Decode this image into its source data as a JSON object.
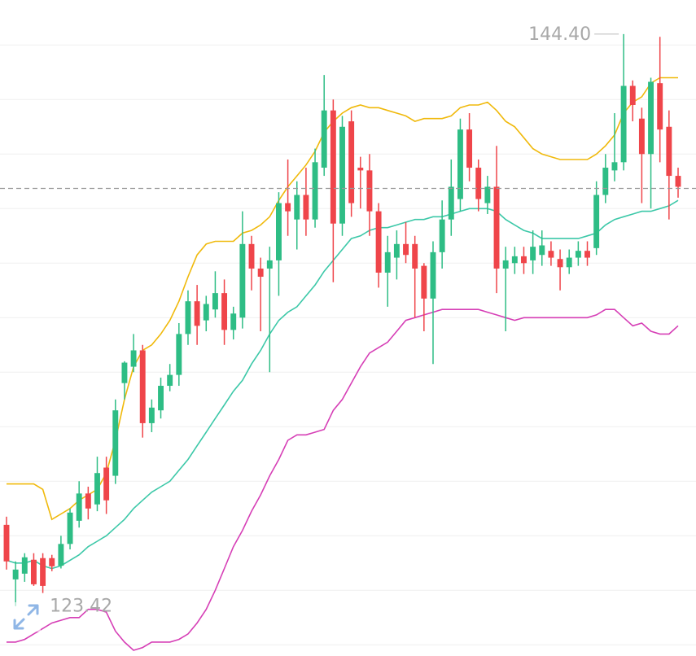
{
  "chart_data": {
    "type": "candlestick",
    "open": [
      126.4,
      124.4,
      124.61,
      125.12,
      125.18,
      125.18,
      124.9,
      125.7,
      126.55,
      127.55,
      127.15,
      128.5,
      128.2,
      131.6,
      132.2,
      132.8,
      130.13,
      130.6,
      131.5,
      131.9,
      133.4,
      134.6,
      133.9,
      134.3,
      134.9,
      133.55,
      134.0,
      136.7,
      135.8,
      135.8,
      136.1,
      138.2,
      137.6,
      138.5,
      137.6,
      139.5,
      141.6,
      137.45,
      141.2,
      139.5,
      139.4,
      137.9,
      135.65,
      136.2,
      136.7,
      136.7,
      135.9,
      134.7,
      136.4,
      137.6,
      138.35,
      140.9,
      139.5,
      138.2,
      138.8,
      135.8,
      136.0,
      136.25,
      136.1,
      136.3,
      136.45,
      136.15,
      135.85,
      136.2,
      136.45,
      136.55,
      138.5,
      139.4,
      139.7,
      142.5,
      141.3,
      140.0,
      142.6,
      141.0,
      139.2
    ],
    "high": [
      126.7,
      125.06,
      125.36,
      125.36,
      125.36,
      125.3,
      126.0,
      127.0,
      128.0,
      127.8,
      128.9,
      128.9,
      131.0,
      132.4,
      133.4,
      133.0,
      131.0,
      131.8,
      132.3,
      133.8,
      135.0,
      135.2,
      134.8,
      135.7,
      135.4,
      134.4,
      137.9,
      137.0,
      136.2,
      136.6,
      138.6,
      139.8,
      139.0,
      139.5,
      140.2,
      142.9,
      142.0,
      141.4,
      141.6,
      139.9,
      140.0,
      138.2,
      137.0,
      137.2,
      137.5,
      137.0,
      136.0,
      136.8,
      138.3,
      139.8,
      141.3,
      141.5,
      139.8,
      139.2,
      140.3,
      136.6,
      136.6,
      136.6,
      137.2,
      137.2,
      136.8,
      136.5,
      136.5,
      136.8,
      136.8,
      139.0,
      140.0,
      141.5,
      144.4,
      142.7,
      141.7,
      142.8,
      144.3,
      141.6,
      139.5
    ],
    "low": [
      124.76,
      123.42,
      124.31,
      124.16,
      123.9,
      124.7,
      124.8,
      125.5,
      126.3,
      126.6,
      126.9,
      126.8,
      127.9,
      131.0,
      132.0,
      129.6,
      129.8,
      130.3,
      131.3,
      131.5,
      133.0,
      133.0,
      133.5,
      134.0,
      133.0,
      133.2,
      133.6,
      135.0,
      133.5,
      132.0,
      134.8,
      137.0,
      136.5,
      137.0,
      137.3,
      139.2,
      135.3,
      137.0,
      137.7,
      138.0,
      137.0,
      135.1,
      134.4,
      135.4,
      136.0,
      134.0,
      133.5,
      132.3,
      135.8,
      137.0,
      137.9,
      139.0,
      137.9,
      137.8,
      134.9,
      133.5,
      135.6,
      135.6,
      135.6,
      135.9,
      135.9,
      135.0,
      135.6,
      135.9,
      135.9,
      136.3,
      138.2,
      139.0,
      139.4,
      141.2,
      138.2,
      138.0,
      139.7,
      137.6,
      138.4
    ],
    "close": [
      125.06,
      124.76,
      125.21,
      124.22,
      124.16,
      124.88,
      125.7,
      126.85,
      127.55,
      127.0,
      128.3,
      127.3,
      130.6,
      132.35,
      132.8,
      130.13,
      130.7,
      131.5,
      131.9,
      133.4,
      134.6,
      133.7,
      134.5,
      134.9,
      133.55,
      134.15,
      136.7,
      135.8,
      135.5,
      136.1,
      138.2,
      137.9,
      138.5,
      137.6,
      139.7,
      141.6,
      137.45,
      141.0,
      138.2,
      139.4,
      137.9,
      135.65,
      136.4,
      136.7,
      136.3,
      135.8,
      134.7,
      136.4,
      137.6,
      138.8,
      140.9,
      139.5,
      138.35,
      138.8,
      135.8,
      136.1,
      136.25,
      136.0,
      136.6,
      136.65,
      136.2,
      135.85,
      136.2,
      136.45,
      136.2,
      138.5,
      139.5,
      139.7,
      142.5,
      141.8,
      140.0,
      142.65,
      140.9,
      139.2,
      138.8
    ],
    "up_color": "#2ebd85",
    "down_color": "#ef454a",
    "overlays": [
      {
        "color": "#f0b90b",
        "values": [
          127.9,
          127.9,
          127.9,
          127.9,
          127.7,
          126.6,
          126.8,
          127.0,
          127.3,
          127.5,
          127.7,
          128.3,
          129.5,
          131.0,
          132.2,
          132.8,
          133.0,
          133.4,
          133.9,
          134.6,
          135.5,
          136.3,
          136.7,
          136.8,
          136.8,
          136.8,
          137.1,
          137.2,
          137.4,
          137.7,
          138.3,
          138.8,
          139.2,
          139.6,
          140.1,
          140.8,
          141.2,
          141.5,
          141.7,
          141.8,
          141.7,
          141.7,
          141.6,
          141.5,
          141.4,
          141.2,
          141.3,
          141.3,
          141.3,
          141.4,
          141.7,
          141.8,
          141.8,
          141.9,
          141.6,
          141.2,
          141.0,
          140.6,
          140.2,
          140.0,
          139.9,
          139.8,
          139.8,
          139.8,
          139.8,
          140.0,
          140.3,
          140.7,
          141.5,
          141.9,
          142.1,
          142.6,
          142.8,
          142.8,
          142.8
        ]
      },
      {
        "color": "#3cc8a8",
        "values": [
          125.1,
          125.0,
          125.0,
          125.1,
          124.9,
          124.8,
          124.9,
          125.1,
          125.3,
          125.6,
          125.8,
          126.0,
          126.3,
          126.6,
          127.0,
          127.3,
          127.6,
          127.8,
          128.0,
          128.4,
          128.8,
          129.3,
          129.8,
          130.3,
          130.8,
          131.3,
          131.7,
          132.3,
          132.8,
          133.4,
          133.9,
          134.2,
          134.4,
          134.8,
          135.2,
          135.7,
          136.1,
          136.5,
          136.9,
          137.0,
          137.2,
          137.3,
          137.3,
          137.4,
          137.5,
          137.6,
          137.6,
          137.7,
          137.7,
          137.8,
          137.9,
          138.0,
          138.0,
          138.0,
          137.9,
          137.6,
          137.4,
          137.2,
          137.1,
          136.9,
          136.9,
          136.9,
          136.9,
          136.9,
          137.0,
          137.1,
          137.4,
          137.6,
          137.7,
          137.8,
          137.9,
          137.9,
          138.0,
          138.1,
          138.3
        ]
      },
      {
        "color": "#d63fb6",
        "values": [
          122.1,
          122.1,
          122.2,
          122.4,
          122.6,
          122.8,
          122.9,
          123.0,
          123.0,
          123.3,
          123.3,
          123.2,
          122.5,
          122.1,
          121.8,
          121.9,
          122.1,
          122.1,
          122.1,
          122.2,
          122.4,
          122.8,
          123.3,
          124.0,
          124.8,
          125.6,
          126.2,
          126.9,
          127.5,
          128.2,
          128.8,
          129.5,
          129.7,
          129.7,
          129.8,
          129.9,
          130.6,
          131.0,
          131.6,
          132.2,
          132.7,
          132.9,
          133.1,
          133.5,
          133.9,
          134.0,
          134.1,
          134.2,
          134.3,
          134.3,
          134.3,
          134.3,
          134.3,
          134.2,
          134.1,
          134.0,
          133.9,
          134.0,
          134.0,
          134.0,
          134.0,
          134.0,
          134.0,
          134.0,
          134.0,
          134.1,
          134.3,
          134.3,
          134.0,
          133.7,
          133.8,
          133.5,
          133.4,
          133.4,
          133.7
        ]
      }
    ],
    "annotations": [
      {
        "value": 144.4,
        "label": "144.40"
      },
      {
        "value": 123.42,
        "label": "123.42"
      }
    ],
    "ylim": [
      121.59,
      145.65
    ],
    "yticks": [
      122,
      124,
      126,
      128,
      130,
      132,
      134,
      136,
      138,
      140,
      142,
      144
    ],
    "grid": true,
    "last_price_line": true
  }
}
